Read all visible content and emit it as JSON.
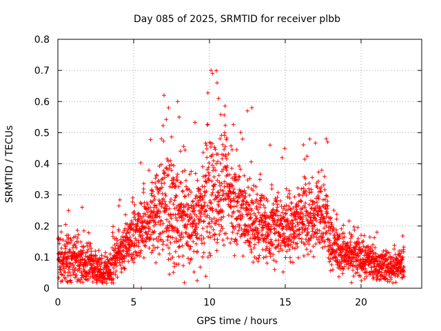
{
  "chart_data": {
    "type": "scatter",
    "title": "Day 085 of 2025, SRMTID for receiver plbb",
    "xlabel": "GPS time / hours",
    "ylabel": "SRMTID / TECUs",
    "xlim": [
      0,
      24
    ],
    "ylim": [
      0,
      0.8
    ],
    "x_ticks": [
      0,
      5,
      10,
      15,
      20
    ],
    "x_tick_labels": [
      "0",
      "5",
      "10",
      "15",
      "20"
    ],
    "y_ticks": [
      0,
      0.1,
      0.2,
      0.3,
      0.4,
      0.5,
      0.6,
      0.7,
      0.8
    ],
    "y_tick_labels": [
      "0",
      "0.1",
      "0.2",
      "0.3",
      "0.4",
      "0.5",
      "0.6",
      "0.7",
      "0.8"
    ],
    "grid": true,
    "marker": "+",
    "marker_color": "#ff0000",
    "approximate_trend": {
      "x": [
        0,
        1,
        2,
        3,
        3.5,
        4,
        5,
        6,
        7,
        8,
        9,
        10,
        11,
        12,
        13,
        14,
        15,
        16,
        17,
        17.5,
        18,
        18.5,
        19,
        20,
        21,
        22,
        22.8
      ],
      "y": [
        0.07,
        0.09,
        0.08,
        0.05,
        0.06,
        0.12,
        0.17,
        0.22,
        0.26,
        0.22,
        0.2,
        0.3,
        0.32,
        0.25,
        0.2,
        0.19,
        0.2,
        0.23,
        0.22,
        0.25,
        0.15,
        0.12,
        0.11,
        0.1,
        0.07,
        0.07,
        0.07
      ]
    },
    "spread": {
      "x": [
        0,
        1,
        2,
        3,
        4,
        5,
        6,
        7,
        8,
        9,
        10,
        11,
        12,
        13,
        14,
        15,
        16,
        17,
        18,
        19,
        20,
        21,
        22,
        23
      ],
      "y": [
        0.04,
        0.05,
        0.04,
        0.03,
        0.04,
        0.05,
        0.07,
        0.1,
        0.09,
        0.08,
        0.12,
        0.1,
        0.08,
        0.07,
        0.06,
        0.07,
        0.07,
        0.07,
        0.05,
        0.04,
        0.04,
        0.03,
        0.03,
        0.03
      ]
    },
    "peaks": [
      {
        "x": 7.0,
        "y": 0.62
      },
      {
        "x": 7.3,
        "y": 0.58
      },
      {
        "x": 7.9,
        "y": 0.6
      },
      {
        "x": 8.0,
        "y": 0.55
      },
      {
        "x": 10.1,
        "y": 0.7
      },
      {
        "x": 10.2,
        "y": 0.69
      },
      {
        "x": 10.5,
        "y": 0.66
      },
      {
        "x": 10.6,
        "y": 0.61
      },
      {
        "x": 12.5,
        "y": 0.57
      },
      {
        "x": 12.8,
        "y": 0.58
      },
      {
        "x": 11.0,
        "y": 0.5
      },
      {
        "x": 14.0,
        "y": 0.46
      },
      {
        "x": 17.7,
        "y": 0.48
      },
      {
        "x": 17.8,
        "y": 0.47
      },
      {
        "x": 0.7,
        "y": 0.25
      },
      {
        "x": 1.6,
        "y": 0.26
      }
    ],
    "outliers": [
      {
        "x": 5.5,
        "y": 0.0
      },
      {
        "x": 1.5,
        "y": 0.02
      },
      {
        "x": 14.3,
        "y": 0.06
      }
    ]
  }
}
